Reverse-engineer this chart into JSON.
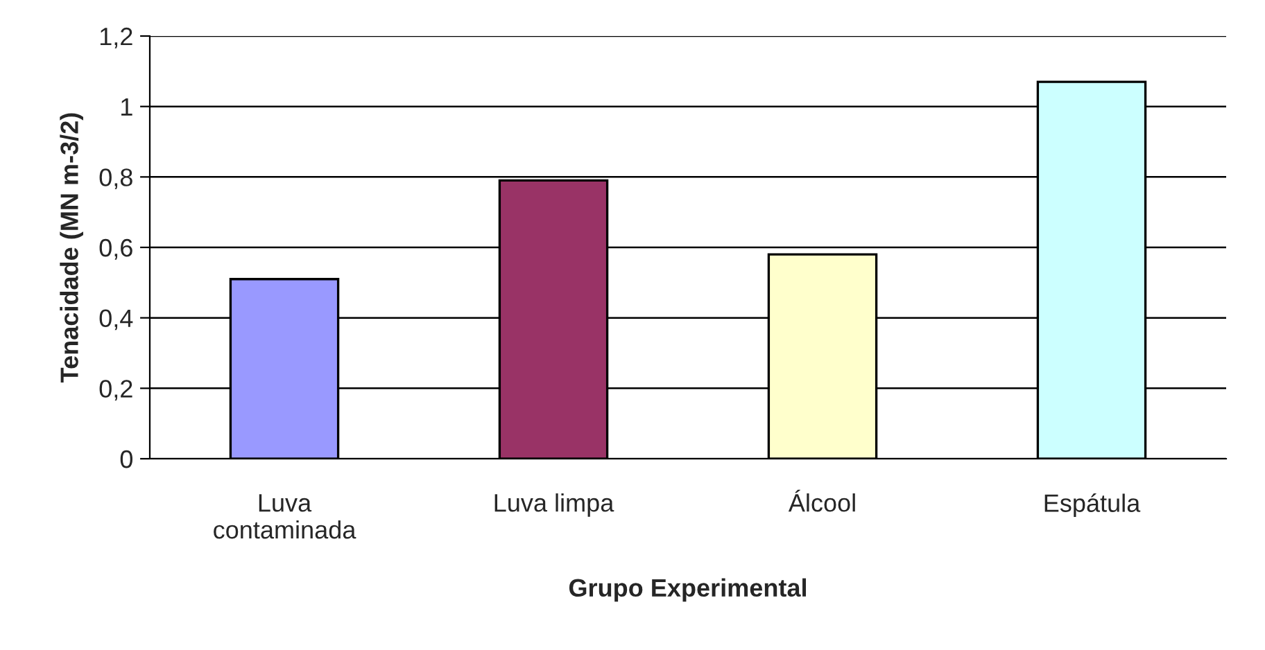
{
  "chart_data": {
    "type": "bar",
    "xlabel": "Grupo Experimental",
    "ylabel": "Tenacidade (MN m-3/2)",
    "categories": [
      "Luva\ncontaminada",
      "Luva limpa",
      "Álcool",
      "Espátula"
    ],
    "values": [
      0.51,
      0.79,
      0.58,
      1.07
    ],
    "colors": [
      "#9999ff",
      "#993366",
      "#ffffcc",
      "#ccffff"
    ],
    "ylim": [
      0,
      1.2
    ],
    "yticks": [
      0,
      {
        "value": 0.2,
        "label": "0,2"
      },
      {
        "value": 0.4,
        "label": "0,4"
      },
      {
        "value": 0.6,
        "label": "0,6"
      },
      {
        "value": 0.8,
        "label": "0,8"
      },
      1,
      {
        "value": 1.2,
        "label": "1,2"
      }
    ],
    "grid": "y",
    "legend": false
  }
}
